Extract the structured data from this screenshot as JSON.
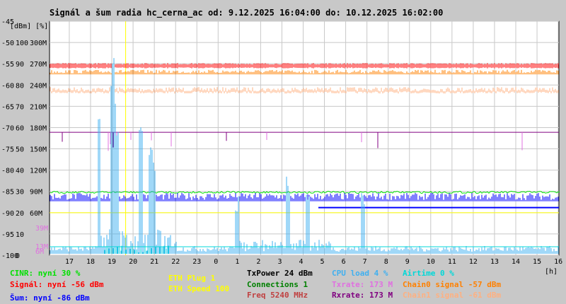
{
  "title": "Signál a šum radia hc_cerna_ac od: 9.12.2025 16:04:00 do: 10.12.2025 16:02:00",
  "chart_data": {
    "type": "line",
    "title": "Signál a šum radia hc_cerna_ac od: 9.12.2025 16:04:00 do: 10.12.2025 16:02:00",
    "y_units_label": "[dBm] [%]",
    "x_unit_label": "[h]",
    "x_ticks": [
      "17",
      "18",
      "19",
      "20",
      "21",
      "22",
      "23",
      "0",
      "1",
      "2",
      "3",
      "4",
      "5",
      "6",
      "7",
      "8",
      "9",
      "10",
      "11",
      "12",
      "13",
      "14",
      "15",
      "16"
    ],
    "y_ticks_dbm": [
      "-45",
      "-50",
      "-55",
      "-60",
      "-65",
      "-70",
      "-75",
      "-80",
      "-85",
      "-90",
      "-95",
      "-100"
    ],
    "y_ticks_pct": [
      "",
      "100",
      "90",
      "80",
      "70",
      "60",
      "50",
      "40",
      "30",
      "20",
      "10",
      "0"
    ],
    "y_ticks_rate": [
      "",
      "300M",
      "270M",
      "240M",
      "210M",
      "180M",
      "150M",
      "120M",
      "90M",
      "60M",
      "",
      ""
    ],
    "ylim_dbm": [
      -100,
      -45
    ],
    "x_range_hours": [
      16.07,
      40.03
    ],
    "grid": true,
    "series": [
      {
        "name": "Signál",
        "color": "#ff0000",
        "approx_value_dbm": -56
      },
      {
        "name": "Chain0 signal",
        "color": "#ff8000",
        "approx_value_dbm": -57
      },
      {
        "name": "Chain1 signal",
        "color": "#ffb080",
        "approx_value_dbm": -61
      },
      {
        "name": "Šum",
        "color": "#0000ff",
        "approx_value_dbm": -86
      },
      {
        "name": "CINR",
        "color": "#00e000",
        "approx_value": 30
      },
      {
        "name": "Txrate",
        "color": "#e070e0",
        "approx_value": 173
      },
      {
        "name": "Rxrate",
        "color": "#800080",
        "approx_value": 173
      },
      {
        "name": "CPU load",
        "color": "#40b0f0",
        "approx_value": 4
      },
      {
        "name": "Airtime",
        "color": "#00d8d8",
        "approx_value": 0
      }
    ],
    "markers": [
      {
        "name": "ETH Plug",
        "color": "#ffff00",
        "x_hour": 19.65
      }
    ],
    "side_labels": [
      {
        "text": "39M",
        "color": "#e070e0"
      },
      {
        "text": "13M",
        "color": "#e070e0"
      },
      {
        "text": "6M",
        "color": "#e070e0"
      }
    ]
  },
  "legend": {
    "cinr": "CINR: nyní 30 %",
    "signal": "Signál: nyní -56 dBm",
    "noise": "Šum: nyní -86 dBm",
    "eth_plug": "ETH Plug 1",
    "eth_speed": "ETH Speed 100",
    "txpower": "TxPower 24 dBm",
    "connections": "Connections 1",
    "freq": "Freq 5240 MHz",
    "cpu": "CPU load 4 %",
    "txrate": "Txrate: 173 M",
    "rxrate": "Rxrate: 173 M",
    "airtime": "Airtime 0 %",
    "chain0": "Chain0 signal -57 dBm",
    "chain1": "Chain1 signal -61 dBm"
  },
  "colors": {
    "background": "#c8c8c8",
    "plot": "#ffffff",
    "grid": "#c8c8c8",
    "cinr": "#00e000",
    "signal": "#ff0000",
    "noise": "#0000ff",
    "eth": "#ffff00",
    "txpower": "#000000",
    "connections": "#008000",
    "freq": "#c04040",
    "cpu": "#40b0f0",
    "txrate": "#e070e0",
    "rxrate": "#800080",
    "airtime": "#00d8d8",
    "chain0": "#ff8000",
    "chain1": "#ffb080"
  }
}
